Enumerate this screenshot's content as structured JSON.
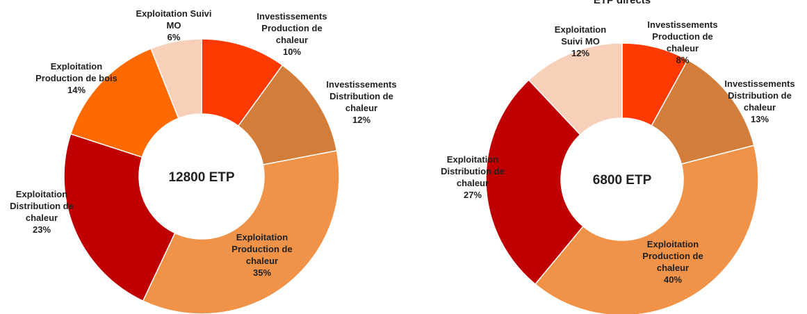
{
  "chart_data": [
    {
      "type": "donut",
      "center_label": "12800 ETP",
      "categories": [
        "Investissements\nProduction de\nchaleur",
        "Investissements\nDistribution de\nchaleur",
        "Exploitation\nProduction de\nchaleur",
        "Exploitation\nDistribution de\nchaleur",
        "Exploitation\nProduction de bois",
        "Exploitation Suivi\nMO"
      ],
      "values": [
        10,
        12,
        35,
        23,
        14,
        6
      ],
      "value_labels": [
        "10%",
        "12%",
        "35%",
        "23%",
        "14%",
        "6%"
      ],
      "colors": [
        "#ff3a00",
        "#d27d3a",
        "#f09248",
        "#c00000",
        "#ff6a00",
        "#f8cfb8"
      ]
    },
    {
      "type": "donut",
      "title": "ETP directs",
      "center_label": "6800 ETP",
      "categories": [
        "Investissements\nProduction de\nchaleur",
        "Investissements\nDistribution de\nchaleur",
        "Exploitation\nProduction de\nchaleur",
        "Exploitation\nDistribution de\nchaleur",
        "Exploitation\nSuivi MO"
      ],
      "values": [
        8,
        13,
        40,
        27,
        12
      ],
      "value_labels": [
        "8%",
        "13%",
        "40%",
        "27%",
        "12%"
      ],
      "colors": [
        "#ff3a00",
        "#d27d3a",
        "#f09248",
        "#c00000",
        "#f8cfb8"
      ]
    }
  ]
}
